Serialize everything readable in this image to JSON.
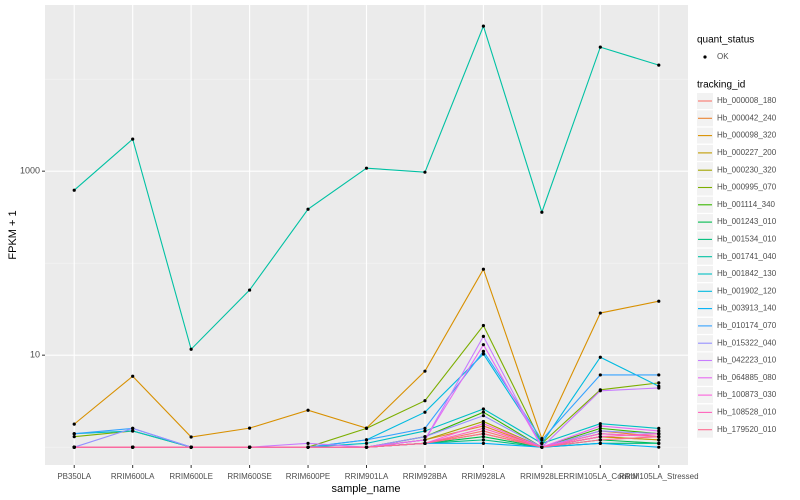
{
  "chart_data": {
    "type": "line",
    "x_label": "sample_name",
    "y_label": "FPKM + 1",
    "categories": [
      "PB350LA",
      "RRIM600LA",
      "RRIM600LE",
      "RRIM600SE",
      "RRIM600PE",
      "RRIM901LA",
      "RRIM928BA",
      "RRIM928LA",
      "RRIM928LE",
      "RRIM105LA_Control",
      "RRIM105LA_Stressed"
    ],
    "ylim": [
      0.64,
      64000
    ],
    "yticks": [
      10,
      1000
    ],
    "y_minor_ticks": [
      1,
      100,
      10000
    ],
    "log_y": true,
    "grid": true,
    "points_legend_title": "quant_status",
    "points_legend_label": "OK",
    "point_color": "#000000",
    "legend_title": "tracking_id",
    "legend_position": "right",
    "series": [
      {
        "name": "Hb_000008_180",
        "color": "#F8766D",
        "values": [
          1,
          1,
          1,
          1,
          1,
          1,
          1.1,
          1.5,
          1,
          1.3,
          1.2
        ]
      },
      {
        "name": "Hb_000042_240",
        "color": "#EA8331",
        "values": [
          1,
          1,
          1,
          1,
          1,
          1,
          1.2,
          1.7,
          1,
          1.5,
          1.3
        ]
      },
      {
        "name": "Hb_000098_320",
        "color": "#D89000",
        "values": [
          1.78,
          5.9,
          1.29,
          1.61,
          2.52,
          1.61,
          6.7,
          86,
          1.24,
          28.7,
          38.6
        ]
      },
      {
        "name": "Hb_000227_200",
        "color": "#C09B00",
        "values": [
          1,
          1,
          1,
          1,
          1,
          1,
          1.1,
          1.4,
          1,
          1.3,
          1.2
        ]
      },
      {
        "name": "Hb_000230_320",
        "color": "#A3A500",
        "values": [
          1,
          1,
          1,
          1,
          1,
          1,
          1.2,
          1.9,
          1,
          1.4,
          1.3
        ]
      },
      {
        "name": "Hb_000995_070",
        "color": "#7CAE00",
        "values": [
          1.3,
          1.5,
          1,
          1,
          1,
          1.6,
          3.2,
          21,
          1.1,
          4.2,
          5.0
        ]
      },
      {
        "name": "Hb_001114_340",
        "color": "#39B600",
        "values": [
          1,
          1,
          1,
          1,
          1,
          1,
          1.3,
          2.4,
          1,
          1.6,
          1.4
        ]
      },
      {
        "name": "Hb_001243_010",
        "color": "#00BB4E",
        "values": [
          1,
          1,
          1,
          1,
          1,
          1,
          1.1,
          1.3,
          1,
          1.2,
          1.1
        ]
      },
      {
        "name": "Hb_001534_010",
        "color": "#00BF7D",
        "values": [
          1,
          1,
          1,
          1,
          1,
          1,
          1.1,
          1.2,
          1,
          1.1,
          1.1
        ]
      },
      {
        "name": "Hb_001741_040",
        "color": "#00C1A3",
        "values": [
          621,
          2230,
          11.6,
          51,
          386,
          1078,
          975,
          37700,
          358,
          22300,
          14200
        ]
      },
      {
        "name": "Hb_001842_130",
        "color": "#00BFC4",
        "values": [
          1.4,
          1.5,
          1,
          1,
          1,
          1.1,
          1.5,
          2.6,
          1.1,
          1.8,
          1.6
        ]
      },
      {
        "name": "Hb_001902_120",
        "color": "#00BAE0",
        "values": [
          1,
          1,
          1,
          1,
          1,
          1.2,
          2.4,
          10.3,
          1.1,
          9.5,
          4.6
        ]
      },
      {
        "name": "Hb_003913_140",
        "color": "#00B0F6",
        "values": [
          1,
          1,
          1,
          1,
          1,
          1,
          1.1,
          1.1,
          1,
          1.1,
          1
        ]
      },
      {
        "name": "Hb_010174_070",
        "color": "#35A2FF",
        "values": [
          1.4,
          1.6,
          1,
          1,
          1,
          1.2,
          1.6,
          11,
          1.2,
          6.1,
          6.1
        ]
      },
      {
        "name": "Hb_015322_040",
        "color": "#9590FF",
        "values": [
          1,
          1.6,
          1,
          1,
          1,
          1,
          1.3,
          2.2,
          1,
          1.5,
          1.4
        ]
      },
      {
        "name": "Hb_042223_010",
        "color": "#C77CFF",
        "values": [
          1,
          1,
          1,
          1,
          1.1,
          1,
          1.2,
          16,
          1,
          4.1,
          4.4
        ]
      },
      {
        "name": "Hb_064885_080",
        "color": "#E76BF3",
        "values": [
          1,
          1,
          1,
          1,
          1,
          1,
          1.2,
          13,
          1,
          1.7,
          1.5
        ]
      },
      {
        "name": "Hb_100873_030",
        "color": "#FA62DB",
        "values": [
          1,
          1,
          1,
          1,
          1,
          1,
          1.1,
          1.8,
          1,
          1.4,
          1.3
        ]
      },
      {
        "name": "Hb_108528_010",
        "color": "#FF62BC",
        "values": [
          1,
          1,
          1,
          1,
          1,
          1,
          1.1,
          1.6,
          1,
          1.3,
          1.4
        ]
      },
      {
        "name": "Hb_179520_010",
        "color": "#FF6C91",
        "values": [
          1,
          1,
          1,
          1,
          1,
          1,
          1.1,
          1.4,
          1,
          1.2,
          1.3
        ]
      }
    ]
  }
}
